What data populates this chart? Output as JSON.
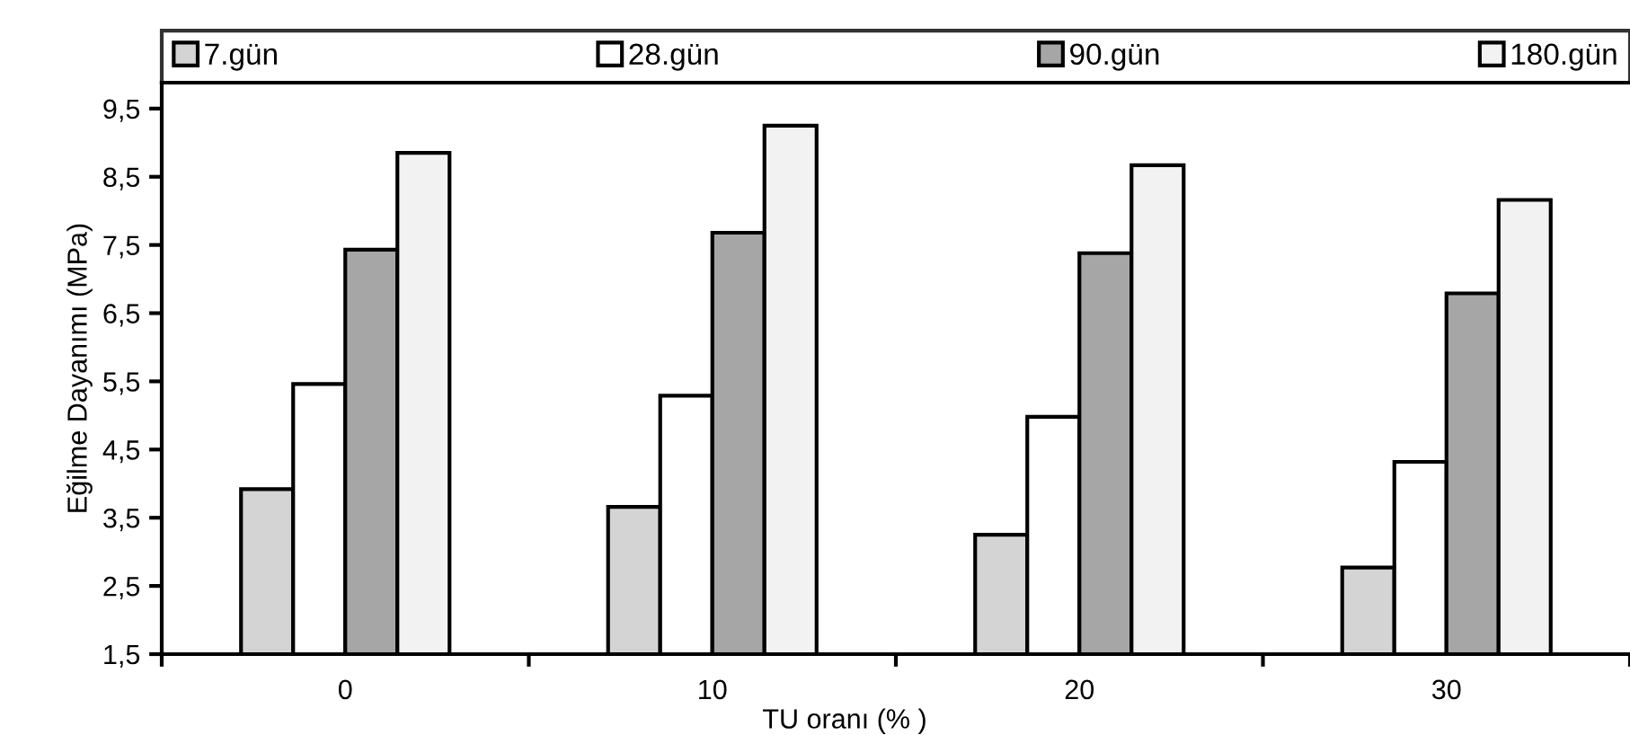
{
  "chart_data": {
    "type": "bar",
    "xlabel": "TU oranı (% )",
    "ylabel": "Eğilme Dayanımı (MPa)",
    "categories": [
      "0",
      "10",
      "20",
      "30"
    ],
    "series": [
      {
        "name": "7.gün",
        "color": "#d4d4d4",
        "values": [
          3.92,
          3.66,
          3.25,
          2.77
        ]
      },
      {
        "name": "28.gün",
        "color": "#ffffff",
        "values": [
          5.46,
          5.29,
          4.98,
          4.32
        ]
      },
      {
        "name": "90.gün",
        "color": "#a6a6a6",
        "values": [
          7.43,
          7.68,
          7.38,
          6.79
        ]
      },
      {
        "name": "180.gün",
        "color": "#f2f2f2",
        "values": [
          8.85,
          9.25,
          8.67,
          8.16
        ]
      }
    ],
    "ylim": [
      1.5,
      9.88
    ],
    "yticks": [
      {
        "value": 1.5,
        "label": "1,5"
      },
      {
        "value": 2.5,
        "label": "2,5"
      },
      {
        "value": 3.5,
        "label": "3,5"
      },
      {
        "value": 4.5,
        "label": "4,5"
      },
      {
        "value": 5.5,
        "label": "5,5"
      },
      {
        "value": 6.5,
        "label": "6,5"
      },
      {
        "value": 7.5,
        "label": "7,5"
      },
      {
        "value": 8.5,
        "label": "8,5"
      },
      {
        "value": 9.5,
        "label": "9,5"
      }
    ],
    "grid": false,
    "legend": "top"
  }
}
